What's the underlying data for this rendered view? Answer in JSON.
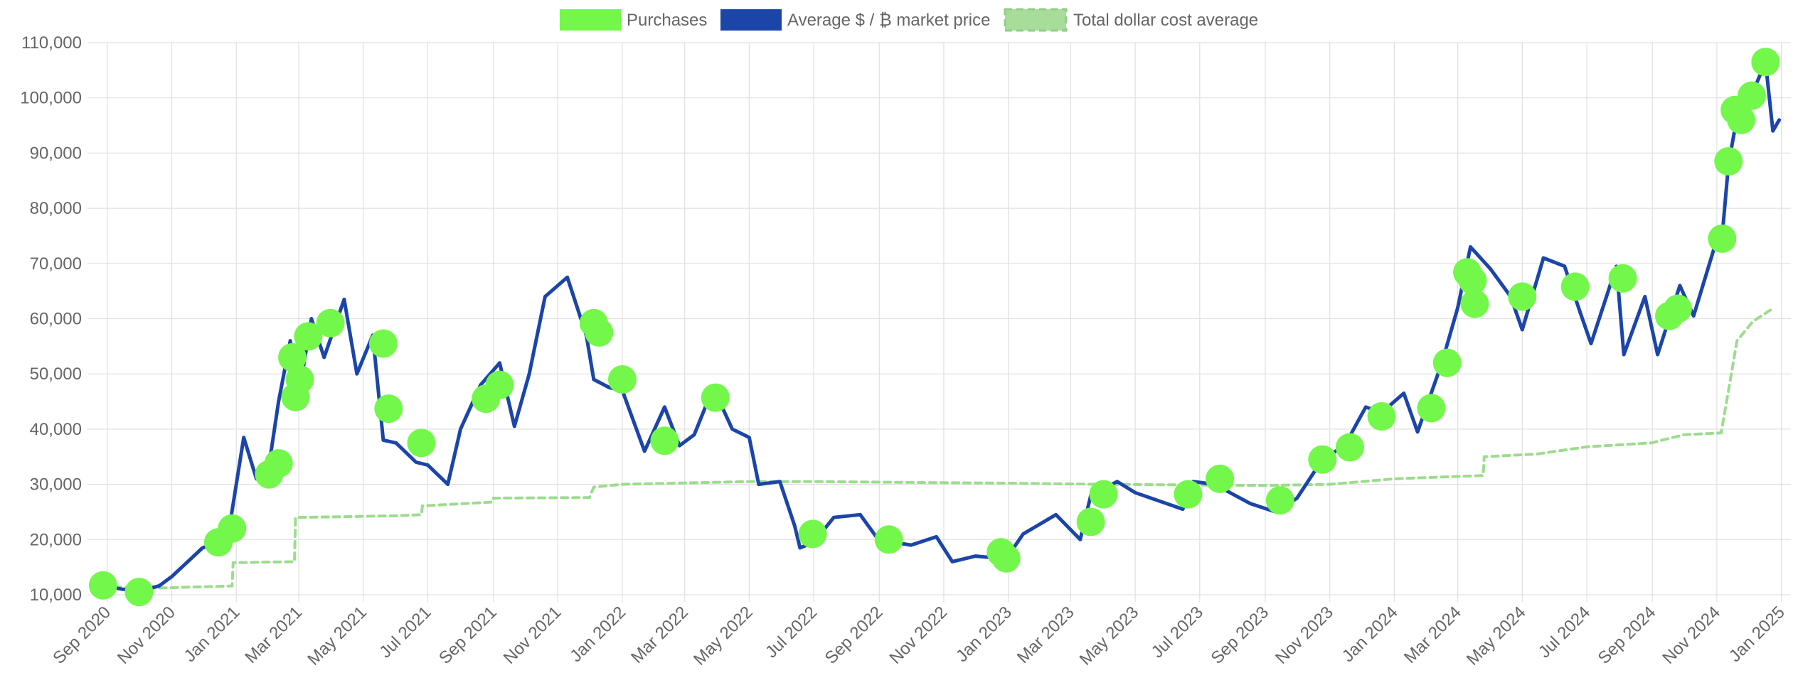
{
  "colors": {
    "purchases": "#73f74a",
    "price_line": "#1b45a8",
    "dca_line": "#9cdc8e",
    "grid": "#e0e0e0",
    "axis_text": "#666666"
  },
  "chart_data": {
    "type": "line",
    "title": "",
    "xlabel": "",
    "ylabel": "",
    "x_axis_type": "date",
    "xlim": [
      "2020-08-20",
      "2025-01-10"
    ],
    "ylim": [
      10000,
      110000
    ],
    "y_ticks": [
      10000,
      20000,
      30000,
      40000,
      50000,
      60000,
      70000,
      80000,
      90000,
      100000,
      110000
    ],
    "y_tick_labels": [
      "10,000",
      "20,000",
      "30,000",
      "40,000",
      "50,000",
      "60,000",
      "70,000",
      "80,000",
      "90,000",
      "100,000",
      "110,000"
    ],
    "x_ticks": [
      "2020-09-01",
      "2020-11-01",
      "2021-01-01",
      "2021-03-01",
      "2021-05-01",
      "2021-07-01",
      "2021-09-01",
      "2021-11-01",
      "2022-01-01",
      "2022-03-01",
      "2022-05-01",
      "2022-07-01",
      "2022-09-01",
      "2022-11-01",
      "2023-01-01",
      "2023-03-01",
      "2023-05-01",
      "2023-07-01",
      "2023-09-01",
      "2023-11-01",
      "2024-01-01",
      "2024-03-01",
      "2024-05-01",
      "2024-07-01",
      "2024-09-01",
      "2024-11-01",
      "2025-01-01"
    ],
    "x_tick_labels": [
      "Sep 2020",
      "Nov 2020",
      "Jan 2021",
      "Mar 2021",
      "May 2021",
      "Jul 2021",
      "Sep 2021",
      "Nov 2021",
      "Jan 2022",
      "Mar 2022",
      "May 2022",
      "Jul 2022",
      "Sep 2022",
      "Nov 2022",
      "Jan 2023",
      "Mar 2023",
      "May 2023",
      "Jul 2023",
      "Sep 2023",
      "Nov 2023",
      "Jan 2024",
      "Mar 2024",
      "May 2024",
      "Jul 2024",
      "Sep 2024",
      "Nov 2024",
      "Jan 2025"
    ],
    "grid": true,
    "legend_position": "top-center",
    "legend": [
      "Purchases",
      "Average $ / ₿ market price",
      "Total dollar cost average"
    ],
    "series": [
      {
        "name": "Average $ / ₿ market price",
        "type": "line",
        "points": [
          [
            "2020-08-28",
            11700
          ],
          [
            "2020-09-15",
            11000
          ],
          [
            "2020-10-01",
            10700
          ],
          [
            "2020-10-20",
            11600
          ],
          [
            "2020-11-01",
            13300
          ],
          [
            "2020-11-15",
            15800
          ],
          [
            "2020-11-30",
            18500
          ],
          [
            "2020-12-15",
            19500
          ],
          [
            "2020-12-27",
            24000
          ],
          [
            "2021-01-08",
            38500
          ],
          [
            "2021-01-20",
            31000
          ],
          [
            "2021-02-01",
            33500
          ],
          [
            "2021-02-10",
            45000
          ],
          [
            "2021-02-21",
            56000
          ],
          [
            "2021-02-28",
            45000
          ],
          [
            "2021-03-13",
            60000
          ],
          [
            "2021-03-25",
            53000
          ],
          [
            "2021-04-13",
            63500
          ],
          [
            "2021-04-25",
            50000
          ],
          [
            "2021-05-10",
            57000
          ],
          [
            "2021-05-20",
            38000
          ],
          [
            "2021-06-01",
            37500
          ],
          [
            "2021-06-20",
            34000
          ],
          [
            "2021-07-01",
            33500
          ],
          [
            "2021-07-20",
            30000
          ],
          [
            "2021-08-01",
            40000
          ],
          [
            "2021-08-20",
            48000
          ],
          [
            "2021-09-07",
            52000
          ],
          [
            "2021-09-21",
            40500
          ],
          [
            "2021-10-05",
            50000
          ],
          [
            "2021-10-20",
            64000
          ],
          [
            "2021-11-10",
            67500
          ],
          [
            "2021-11-28",
            57000
          ],
          [
            "2021-12-05",
            49000
          ],
          [
            "2021-12-20",
            47500
          ],
          [
            "2022-01-01",
            47000
          ],
          [
            "2022-01-22",
            36000
          ],
          [
            "2022-02-10",
            44000
          ],
          [
            "2022-02-24",
            37000
          ],
          [
            "2022-03-10",
            39000
          ],
          [
            "2022-03-28",
            47500
          ],
          [
            "2022-04-15",
            40000
          ],
          [
            "2022-05-01",
            38500
          ],
          [
            "2022-05-10",
            30000
          ],
          [
            "2022-05-30",
            30500
          ],
          [
            "2022-06-13",
            22500
          ],
          [
            "2022-06-18",
            18500
          ],
          [
            "2022-07-01",
            19500
          ],
          [
            "2022-07-20",
            24000
          ],
          [
            "2022-08-14",
            24500
          ],
          [
            "2022-08-31",
            20000
          ],
          [
            "2022-09-15",
            19500
          ],
          [
            "2022-10-01",
            19000
          ],
          [
            "2022-10-25",
            20500
          ],
          [
            "2022-11-09",
            16000
          ],
          [
            "2022-12-01",
            17000
          ],
          [
            "2022-12-30",
            16500
          ],
          [
            "2023-01-15",
            21000
          ],
          [
            "2023-02-15",
            24500
          ],
          [
            "2023-03-10",
            20000
          ],
          [
            "2023-03-20",
            28000
          ],
          [
            "2023-04-14",
            30500
          ],
          [
            "2023-05-01",
            28500
          ],
          [
            "2023-06-15",
            25500
          ],
          [
            "2023-06-25",
            30500
          ],
          [
            "2023-07-15",
            30000
          ],
          [
            "2023-08-18",
            26500
          ],
          [
            "2023-09-11",
            25000
          ],
          [
            "2023-10-01",
            27500
          ],
          [
            "2023-10-25",
            34500
          ],
          [
            "2023-11-15",
            37000
          ],
          [
            "2023-12-05",
            44000
          ],
          [
            "2023-12-20",
            43000
          ],
          [
            "2024-01-10",
            46500
          ],
          [
            "2024-01-23",
            39500
          ],
          [
            "2024-02-15",
            52000
          ],
          [
            "2024-03-01",
            62000
          ],
          [
            "2024-03-13",
            73000
          ],
          [
            "2024-04-01",
            69000
          ],
          [
            "2024-04-20",
            64000
          ],
          [
            "2024-05-01",
            58000
          ],
          [
            "2024-05-21",
            71000
          ],
          [
            "2024-06-10",
            69500
          ],
          [
            "2024-06-25",
            61000
          ],
          [
            "2024-07-05",
            55500
          ],
          [
            "2024-07-29",
            69500
          ],
          [
            "2024-08-05",
            53500
          ],
          [
            "2024-08-25",
            64000
          ],
          [
            "2024-09-06",
            53500
          ],
          [
            "2024-09-27",
            66000
          ],
          [
            "2024-10-10",
            60500
          ],
          [
            "2024-10-29",
            72500
          ],
          [
            "2024-11-06",
            75000
          ],
          [
            "2024-11-12",
            88000
          ],
          [
            "2024-11-22",
            98500
          ],
          [
            "2024-12-05",
            101000
          ],
          [
            "2024-12-17",
            106500
          ],
          [
            "2024-12-24",
            94000
          ],
          [
            "2024-12-30",
            96000
          ]
        ]
      },
      {
        "name": "Total dollar cost average",
        "type": "line",
        "style": "dashed",
        "points": [
          [
            "2020-08-28",
            11700
          ],
          [
            "2020-10-01",
            11100
          ],
          [
            "2020-11-20",
            11400
          ],
          [
            "2020-12-15",
            11500
          ],
          [
            "2020-12-28",
            11600
          ],
          [
            "2020-12-29",
            15800
          ],
          [
            "2021-02-25",
            16000
          ],
          [
            "2021-02-26",
            24000
          ],
          [
            "2021-06-01",
            24300
          ],
          [
            "2021-06-25",
            24500
          ],
          [
            "2021-06-26",
            26100
          ],
          [
            "2021-08-31",
            26800
          ],
          [
            "2021-09-01",
            27500
          ],
          [
            "2021-12-01",
            27600
          ],
          [
            "2021-12-05",
            29500
          ],
          [
            "2022-01-01",
            30000
          ],
          [
            "2022-05-01",
            30500
          ],
          [
            "2022-07-01",
            30500
          ],
          [
            "2022-11-01",
            30300
          ],
          [
            "2023-01-01",
            30200
          ],
          [
            "2023-04-01",
            30000
          ],
          [
            "2023-09-01",
            29800
          ],
          [
            "2023-11-01",
            30000
          ],
          [
            "2024-01-01",
            31000
          ],
          [
            "2024-03-25",
            31600
          ],
          [
            "2024-03-26",
            35000
          ],
          [
            "2024-05-15",
            35500
          ],
          [
            "2024-07-01",
            36800
          ],
          [
            "2024-08-31",
            37500
          ],
          [
            "2024-10-01",
            39000
          ],
          [
            "2024-11-05",
            39300
          ],
          [
            "2024-11-12",
            47000
          ],
          [
            "2024-11-20",
            56000
          ],
          [
            "2024-12-05",
            59500
          ],
          [
            "2024-12-25",
            62000
          ]
        ]
      },
      {
        "name": "Purchases",
        "type": "scatter",
        "points": [
          [
            "2020-08-28",
            11700
          ],
          [
            "2020-10-01",
            10500
          ],
          [
            "2020-12-15",
            19500
          ],
          [
            "2020-12-28",
            22000
          ],
          [
            "2021-02-01",
            31800
          ],
          [
            "2021-02-10",
            33800
          ],
          [
            "2021-02-23",
            53000
          ],
          [
            "2021-02-26",
            45800
          ],
          [
            "2021-03-02",
            49000
          ],
          [
            "2021-03-10",
            56800
          ],
          [
            "2021-03-31",
            59200
          ],
          [
            "2021-05-20",
            55500
          ],
          [
            "2021-05-25",
            43700
          ],
          [
            "2021-06-25",
            37500
          ],
          [
            "2021-08-25",
            45500
          ],
          [
            "2021-09-07",
            48000
          ],
          [
            "2021-12-05",
            59200
          ],
          [
            "2021-12-10",
            57500
          ],
          [
            "2022-01-01",
            49000
          ],
          [
            "2022-02-10",
            37900
          ],
          [
            "2022-03-30",
            45700
          ],
          [
            "2022-06-30",
            21000
          ],
          [
            "2022-09-10",
            20000
          ],
          [
            "2022-12-25",
            17700
          ],
          [
            "2022-12-30",
            16600
          ],
          [
            "2023-03-20",
            23200
          ],
          [
            "2023-04-01",
            28200
          ],
          [
            "2023-06-20",
            28200
          ],
          [
            "2023-07-20",
            31000
          ],
          [
            "2023-09-15",
            27100
          ],
          [
            "2023-10-25",
            34500
          ],
          [
            "2023-11-20",
            36700
          ],
          [
            "2023-12-20",
            42300
          ],
          [
            "2024-02-05",
            43800
          ],
          [
            "2024-02-20",
            52000
          ],
          [
            "2024-03-10",
            68400
          ],
          [
            "2024-03-15",
            66900
          ],
          [
            "2024-03-17",
            62700
          ],
          [
            "2024-05-01",
            64000
          ],
          [
            "2024-06-20",
            65800
          ],
          [
            "2024-08-04",
            67300
          ],
          [
            "2024-09-17",
            60500
          ],
          [
            "2024-09-25",
            61800
          ],
          [
            "2024-11-06",
            74500
          ],
          [
            "2024-11-12",
            88500
          ],
          [
            "2024-11-18",
            97800
          ],
          [
            "2024-11-24",
            96000
          ],
          [
            "2024-12-04",
            100400
          ],
          [
            "2024-12-17",
            106500
          ]
        ]
      }
    ]
  }
}
